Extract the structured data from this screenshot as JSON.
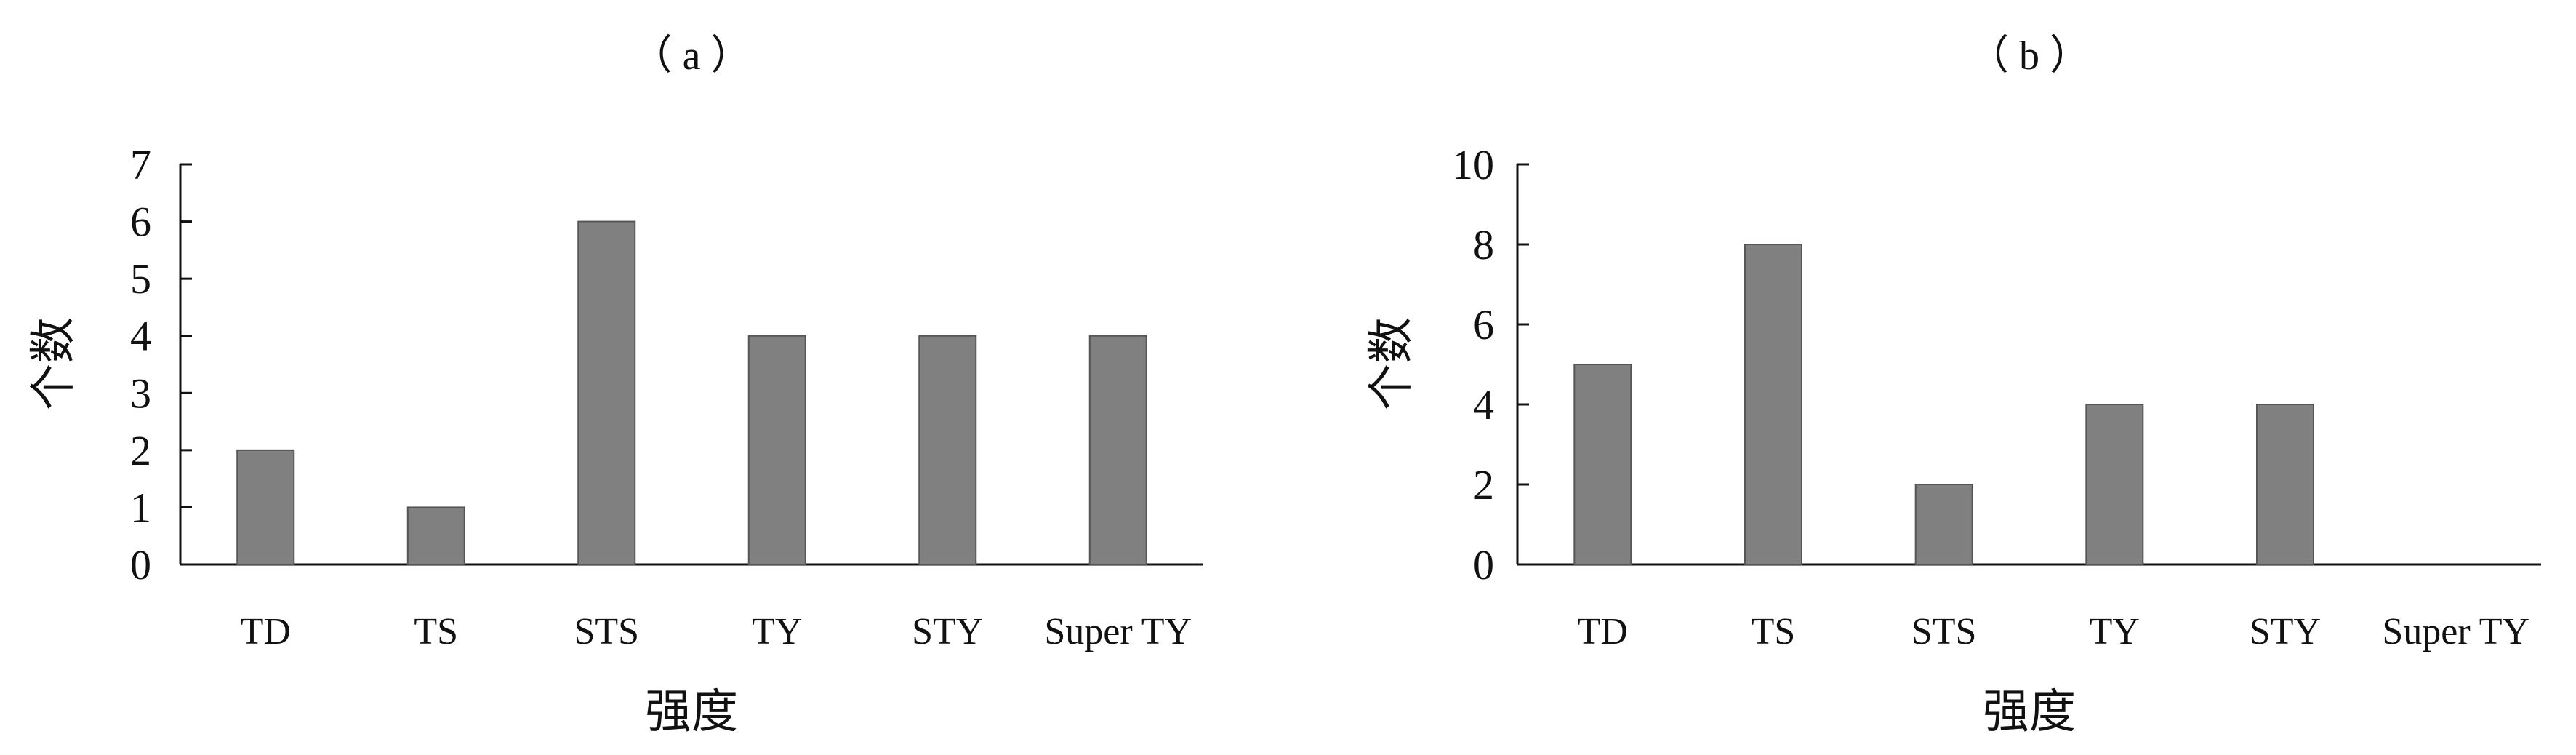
{
  "chart_data": [
    {
      "type": "bar",
      "title": "（ a ）",
      "categories": [
        "TD",
        "TS",
        "STS",
        "TY",
        "STY",
        "Super TY"
      ],
      "values": [
        2,
        1,
        6,
        4,
        4,
        4
      ],
      "xlabel": "强度",
      "ylabel": "个数",
      "ylim": [
        0,
        7
      ],
      "yticks": [
        "0",
        "1",
        "2",
        "3",
        "4",
        "5",
        "6",
        "7"
      ],
      "grid": false,
      "bar_color": "#808080"
    },
    {
      "type": "bar",
      "title": "（ b ）",
      "categories": [
        "TD",
        "TS",
        "STS",
        "TY",
        "STY",
        "Super TY"
      ],
      "values": [
        5,
        8,
        2,
        4,
        4,
        0
      ],
      "xlabel": "强度",
      "ylabel": "个数",
      "ylim": [
        0,
        10
      ],
      "yticks": [
        "0",
        "2",
        "4",
        "6",
        "8",
        "10"
      ],
      "grid": false,
      "bar_color": "#808080"
    }
  ]
}
